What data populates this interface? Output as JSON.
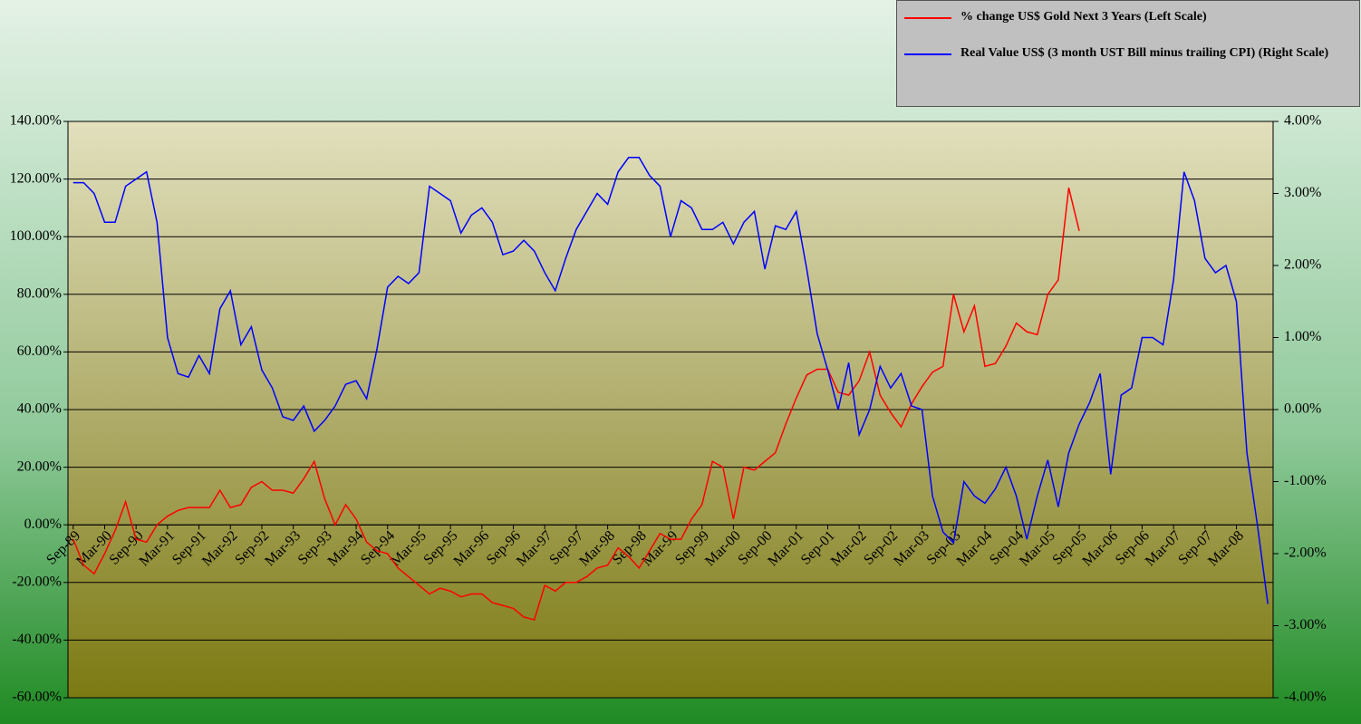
{
  "chart_data": {
    "type": "line",
    "categories": [
      "Sep-89",
      null,
      null,
      "Mar-90",
      null,
      null,
      "Sep-90",
      null,
      null,
      "Mar-91",
      null,
      null,
      "Sep-91",
      null,
      null,
      "Mar-92",
      null,
      null,
      "Sep-92",
      null,
      null,
      "Mar-93",
      null,
      null,
      "Sep-93",
      null,
      null,
      "Mar-94",
      null,
      null,
      "Sep-94",
      null,
      null,
      "Mar-95",
      null,
      null,
      "Sep-95",
      null,
      null,
      "Mar-96",
      null,
      null,
      "Sep-96",
      null,
      null,
      "Mar-97",
      null,
      null,
      "Sep-97",
      null,
      null,
      "Mar-98",
      null,
      null,
      "Sep-98",
      null,
      null,
      "Mar-99",
      null,
      null,
      "Sep-99",
      null,
      null,
      "Mar-00",
      null,
      null,
      "Sep-00",
      null,
      null,
      "Mar-01",
      null,
      null,
      "Sep-01",
      null,
      null,
      "Mar-02",
      null,
      null,
      "Sep-02",
      null,
      null,
      "Mar-03",
      null,
      null,
      "Sep-03",
      null,
      null,
      "Mar-04",
      null,
      null,
      "Sep-04",
      null,
      null,
      "Mar-05",
      null,
      null,
      "Sep-05",
      null,
      null,
      "Mar-06",
      null,
      null,
      "Sep-06",
      null,
      null,
      "Mar-07",
      null,
      null,
      "Sep-07",
      null,
      null,
      "Mar-08",
      null,
      null,
      null
    ],
    "series": [
      {
        "name": "% change US$ Gold Next 3 Years (Left Scale)",
        "color": "#ff0000",
        "axis": "y",
        "values": [
          -5,
          -14,
          -17,
          -10,
          -2,
          8,
          -5,
          -6,
          0,
          3,
          5,
          6,
          6,
          6,
          12,
          6,
          7,
          13,
          15,
          12,
          12,
          11,
          16,
          22,
          9,
          0,
          7,
          2,
          -6,
          -9,
          -10,
          -15,
          -18,
          -21,
          -24,
          -22,
          -23,
          -25,
          -24,
          -24,
          -27,
          -28,
          -29,
          -32,
          -33,
          -21,
          -23,
          -20,
          -20,
          -18,
          -15,
          -14,
          -8,
          -11,
          -15,
          -9,
          -3,
          -5,
          -5,
          2,
          7,
          22,
          20,
          2,
          20,
          19,
          22,
          25,
          35,
          44,
          52,
          54,
          54,
          46,
          45,
          50,
          60,
          45,
          39,
          34,
          42,
          48,
          53,
          55,
          80,
          67,
          76,
          55,
          56,
          62,
          70,
          67,
          66,
          80,
          85,
          117,
          102,
          null,
          null,
          null,
          null,
          null,
          null,
          null,
          null,
          null,
          null,
          null,
          null,
          null,
          null,
          null,
          null,
          null,
          null
        ]
      },
      {
        "name": "Real Value US$ (3 month UST Bill minus trailing CPI) (Right Scale)",
        "color": "#0000ff",
        "axis": "y2",
        "values": [
          3.15,
          3.15,
          3.0,
          2.6,
          2.6,
          3.1,
          3.2,
          3.3,
          2.6,
          1.0,
          0.5,
          0.45,
          0.75,
          0.5,
          1.4,
          1.65,
          0.9,
          1.15,
          0.55,
          0.3,
          -0.1,
          -0.15,
          0.05,
          -0.3,
          -0.15,
          0.05,
          0.35,
          0.4,
          0.15,
          0.85,
          1.7,
          1.85,
          1.75,
          1.9,
          3.1,
          3.0,
          2.9,
          2.45,
          2.7,
          2.8,
          2.6,
          2.15,
          2.2,
          2.35,
          2.2,
          1.9,
          1.65,
          2.1,
          2.5,
          2.75,
          3.0,
          2.85,
          3.3,
          3.5,
          3.5,
          3.25,
          3.1,
          2.4,
          2.9,
          2.8,
          2.5,
          2.5,
          2.6,
          2.3,
          2.6,
          2.75,
          1.95,
          2.55,
          2.5,
          2.75,
          1.95,
          1.05,
          0.55,
          0.0,
          0.65,
          -0.35,
          0.0,
          0.6,
          0.3,
          0.5,
          0.05,
          0.0,
          -1.2,
          -1.7,
          -1.85,
          -1.0,
          -1.2,
          -1.3,
          -1.1,
          -0.8,
          -1.2,
          -1.8,
          -1.2,
          -0.7,
          -1.35,
          -0.6,
          -0.2,
          0.1,
          0.5,
          -0.9,
          0.2,
          0.3,
          1.0,
          1.0,
          0.9,
          1.8,
          3.3,
          2.9,
          2.1,
          1.9,
          2.0,
          1.5,
          -0.6,
          -1.6,
          -2.7
        ]
      }
    ],
    "ylim": [
      -60,
      140
    ],
    "yticks": [
      {
        "value": -60,
        "label": "-60.00%"
      },
      {
        "value": -40,
        "label": "-40.00%"
      },
      {
        "value": -20,
        "label": "-20.00%"
      },
      {
        "value": 0,
        "label": "0.00%"
      },
      {
        "value": 20,
        "label": "20.00%"
      },
      {
        "value": 40,
        "label": "40.00%"
      },
      {
        "value": 60,
        "label": "60.00%"
      },
      {
        "value": 80,
        "label": "80.00%"
      },
      {
        "value": 100,
        "label": "100.00%"
      },
      {
        "value": 120,
        "label": "120.00%"
      },
      {
        "value": 140,
        "label": "140.00%"
      }
    ],
    "y2lim": [
      -4,
      4
    ],
    "y2ticks": [
      {
        "value": -4,
        "label": "-4.00%"
      },
      {
        "value": -3,
        "label": "-3.00%"
      },
      {
        "value": -2,
        "label": "-2.00%"
      },
      {
        "value": -1,
        "label": "-1.00%"
      },
      {
        "value": 0,
        "label": "0.00%"
      },
      {
        "value": 1,
        "label": "1.00%"
      },
      {
        "value": 2,
        "label": "2.00%"
      },
      {
        "value": 3,
        "label": "3.00%"
      },
      {
        "value": 4,
        "label": "4.00%"
      }
    ],
    "grid": true,
    "legend": "top-right"
  }
}
